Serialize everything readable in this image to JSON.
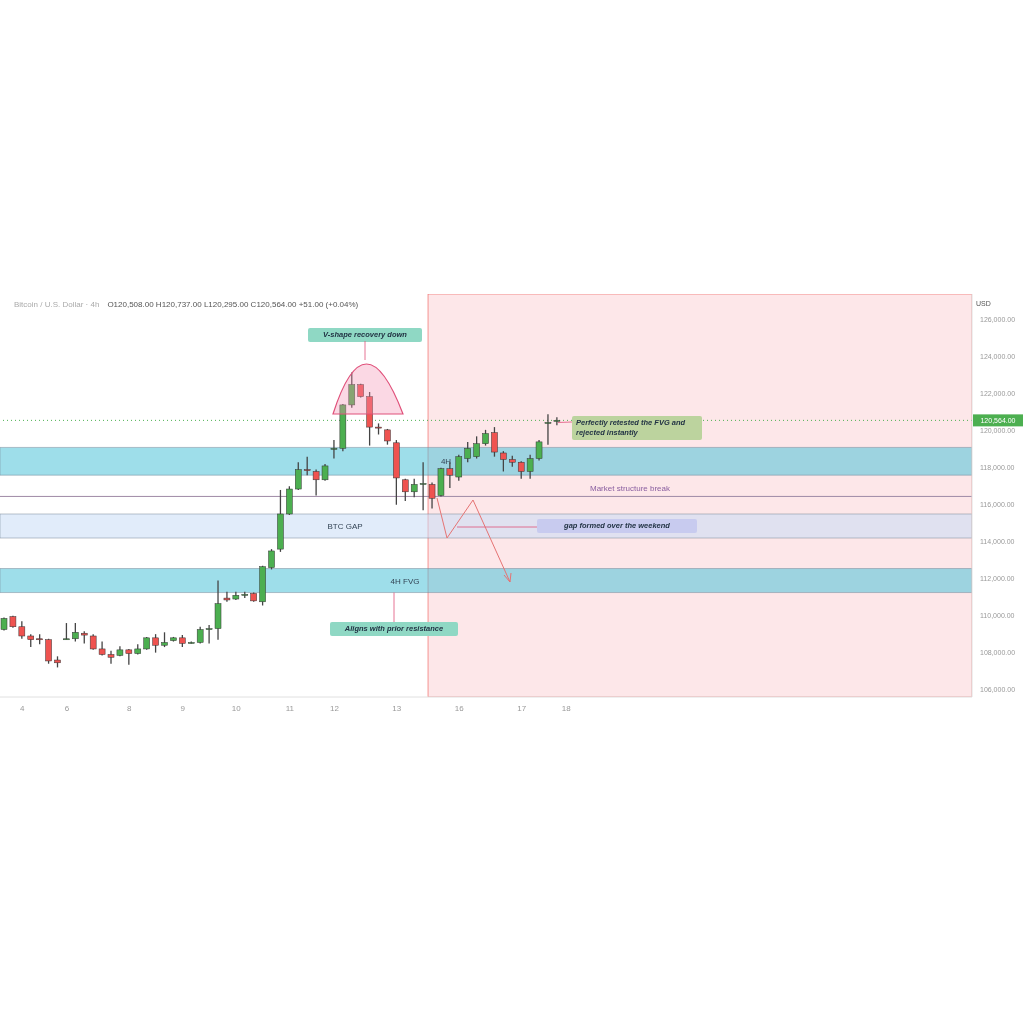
{
  "chart_data": {
    "type": "candlestick",
    "title": "Bitcoin / U.S. Dollar · 4h",
    "subtitle": "O120,508.00 H120,737.00 L120,295.00 C120,564.00 +51.00 (+0.04%)",
    "ylabel": "USD",
    "categories": [
      null,
      null,
      "4",
      null,
      null,
      null,
      null,
      "6",
      null,
      null,
      null,
      null,
      null,
      null,
      "8",
      null,
      null,
      null,
      null,
      null,
      "9",
      null,
      null,
      null,
      null,
      null,
      "10",
      null,
      null,
      null,
      null,
      null,
      "11",
      null,
      null,
      null,
      null,
      "12",
      null,
      null,
      null,
      null,
      null,
      null,
      "13",
      null,
      null,
      null,
      null,
      null,
      null,
      "16",
      null,
      null,
      null,
      null,
      null,
      null,
      "17",
      null,
      null,
      null,
      null,
      "18",
      null,
      null,
      null,
      null,
      null,
      null,
      null,
      null,
      null,
      null,
      null,
      null,
      null,
      null,
      null,
      null,
      null,
      null,
      null,
      null,
      null,
      null,
      null,
      null,
      null,
      null,
      null,
      null,
      null,
      null,
      null,
      null,
      null,
      null,
      null,
      null,
      null,
      null,
      null,
      null,
      null,
      null,
      null,
      null,
      null
    ],
    "ohlc": [
      [
        109250,
        109900,
        109200,
        109850
      ],
      [
        109950,
        110000,
        109350,
        109400
      ],
      [
        109400,
        109700,
        108750,
        108900
      ],
      [
        108900,
        109000,
        108300,
        108700
      ],
      [
        108750,
        109000,
        108450,
        108700
      ],
      [
        108700,
        108750,
        107400,
        107550
      ],
      [
        107600,
        107800,
        107200,
        107450
      ],
      [
        108700,
        109600,
        108700,
        108750
      ],
      [
        108750,
        109600,
        108600,
        109100
      ],
      [
        109050,
        109150,
        108500,
        108950
      ],
      [
        108900,
        109000,
        108150,
        108200
      ],
      [
        108200,
        108600,
        107850,
        107900
      ],
      [
        107900,
        108100,
        107400,
        107750
      ],
      [
        107850,
        108350,
        107800,
        108150
      ],
      [
        108150,
        108200,
        107350,
        107950
      ],
      [
        107950,
        108450,
        107900,
        108200
      ],
      [
        108200,
        108850,
        108150,
        108800
      ],
      [
        108800,
        109000,
        108000,
        108400
      ],
      [
        108400,
        109100,
        108300,
        108550
      ],
      [
        108650,
        108850,
        108600,
        108800
      ],
      [
        108800,
        108950,
        108300,
        108500
      ],
      [
        108550,
        108600,
        108500,
        108550
      ],
      [
        108550,
        109400,
        108500,
        109250
      ],
      [
        109250,
        109500,
        108500,
        109300
      ],
      [
        109300,
        111900,
        108700,
        110650
      ],
      [
        110950,
        111300,
        110750,
        110850
      ],
      [
        110900,
        111300,
        110850,
        111100
      ],
      [
        111100,
        111300,
        110950,
        111150
      ],
      [
        111200,
        111250,
        110750,
        110800
      ],
      [
        110750,
        112700,
        110550,
        112650
      ],
      [
        112600,
        113600,
        112500,
        113500
      ],
      [
        113600,
        116800,
        113450,
        115500
      ],
      [
        115500,
        117000,
        115450,
        116850
      ],
      [
        116850,
        118300,
        116800,
        117900
      ],
      [
        117900,
        118600,
        117600,
        117850
      ],
      [
        117800,
        117900,
        116500,
        117350
      ],
      [
        117350,
        118200,
        117300,
        118100
      ],
      [
        119000,
        119500,
        118500,
        119050
      ],
      [
        119050,
        121450,
        118900,
        121400
      ],
      [
        121400,
        123150,
        121250,
        122500
      ],
      [
        122500,
        122550,
        121800,
        121850
      ],
      [
        121850,
        122100,
        119200,
        120200
      ],
      [
        120200,
        120400,
        119800,
        120150
      ],
      [
        120050,
        120100,
        119250,
        119450
      ],
      [
        119350,
        119500,
        116000,
        117450
      ],
      [
        117350,
        117400,
        116200,
        116700
      ],
      [
        116700,
        117400,
        116400,
        117100
      ],
      [
        117100,
        118300,
        115700,
        117150
      ],
      [
        117100,
        117200,
        115800,
        116350
      ],
      [
        116500,
        118000,
        116450,
        117950
      ],
      [
        117950,
        118300,
        116900,
        117600
      ],
      [
        117500,
        118700,
        117300,
        118600
      ],
      [
        118500,
        119400,
        118300,
        119050
      ],
      [
        118600,
        119700,
        118500,
        119300
      ],
      [
        119300,
        120050,
        119200,
        119850
      ],
      [
        119900,
        120200,
        118600,
        118850
      ],
      [
        118800,
        118900,
        117800,
        118450
      ],
      [
        118450,
        118650,
        118050,
        118300
      ],
      [
        118300,
        118350,
        117400,
        117800
      ],
      [
        117800,
        118700,
        117400,
        118500
      ],
      [
        118500,
        119500,
        118400,
        119400
      ],
      [
        120400,
        120900,
        119250,
        120450
      ],
      [
        120508,
        120737,
        120295,
        120564
      ],
      null,
      null,
      null,
      null,
      null,
      null,
      null,
      null,
      null,
      null,
      null,
      null,
      null,
      null,
      null,
      null,
      null,
      null,
      null,
      null,
      null,
      null,
      null,
      null,
      null,
      null,
      null,
      null,
      null,
      null,
      null,
      null,
      null,
      null,
      null,
      null,
      null,
      null,
      null,
      null,
      null,
      null,
      null,
      null,
      null,
      null
    ],
    "ylim": [
      105600,
      127400
    ],
    "yticks": [
      {
        "value": 106000,
        "label": "106,000.00"
      },
      {
        "value": 108000,
        "label": "108,000.00"
      },
      {
        "value": 110000,
        "label": "110,000.00"
      },
      {
        "value": 112000,
        "label": "112,000.00"
      },
      {
        "value": 114000,
        "label": "114,000.00"
      },
      {
        "value": 116000,
        "label": "116,000.00"
      },
      {
        "value": 118000,
        "label": "118,000.00"
      },
      {
        "value": 120000,
        "label": "120,000.00"
      },
      {
        "value": 122000,
        "label": "122,000.00"
      },
      {
        "value": 124000,
        "label": "124,000.00"
      },
      {
        "value": 126000,
        "label": "126,000.00"
      }
    ],
    "bands": [
      {
        "axis": "y",
        "from": 117600,
        "to": 119100,
        "label": "4H",
        "color": "#4fc3d9"
      },
      {
        "axis": "y",
        "from": 114200,
        "to": 115500,
        "label": "BTC GAP",
        "color": "#c9dcf5"
      },
      {
        "axis": "y",
        "from": 111250,
        "to": 112550,
        "label": "4H FVG",
        "color": "#4fc3d9"
      }
    ],
    "ref_lines": [
      {
        "axis": "y",
        "value": 120564,
        "label": "120,564.00",
        "color": "#4caf50",
        "line_style": "dotted"
      },
      {
        "axis": "y",
        "value": 116450,
        "label": "Market structure break",
        "color": "#9e8aa6",
        "line_style": "solid"
      }
    ],
    "annotations": [
      "V-shape recovery down",
      {
        "text": "Perfectly retested the FVG and rejected instantly",
        "y": 120450
      },
      "gap formed over the weekend",
      {
        "text": "Aligns with prior resistance",
        "y": 111250
      }
    ]
  }
}
